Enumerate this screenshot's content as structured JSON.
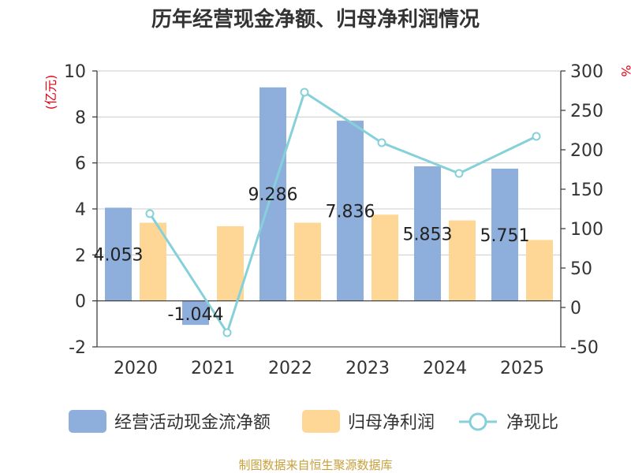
{
  "chart_data": {
    "type": "bar",
    "title": "历年经营现金净额、归母净利润情况",
    "categories": [
      "2020",
      "2021",
      "2022",
      "2023",
      "2024",
      "2025"
    ],
    "series": [
      {
        "name": "经营活动现金流净额",
        "type": "bar",
        "axis": "left",
        "color": "#8eaedc",
        "values": [
          4.053,
          -1.044,
          9.286,
          7.836,
          5.853,
          5.751
        ],
        "labels": [
          "4.053",
          "-1.044",
          "9.286",
          "7.836",
          "5.853",
          "5.751"
        ]
      },
      {
        "name": "归母净利润",
        "type": "bar",
        "axis": "left",
        "color": "#fed797",
        "values": [
          3.4,
          3.25,
          3.4,
          3.75,
          3.5,
          2.65
        ]
      },
      {
        "name": "净现比",
        "type": "line",
        "axis": "right",
        "color": "#86d1d9",
        "values": [
          119,
          -32,
          273,
          209,
          170,
          217
        ]
      }
    ],
    "left_axis": {
      "label": "(亿元)",
      "min": -2,
      "max": 10,
      "ticks": [
        -2,
        0,
        2,
        4,
        6,
        8,
        10
      ]
    },
    "right_axis": {
      "label": "%",
      "min": -50,
      "max": 300,
      "ticks": [
        -50,
        0,
        50,
        100,
        150,
        200,
        250,
        300
      ]
    },
    "grid": true,
    "legend_position": "bottom"
  },
  "source": "制图数据来自恒生聚源数据库"
}
